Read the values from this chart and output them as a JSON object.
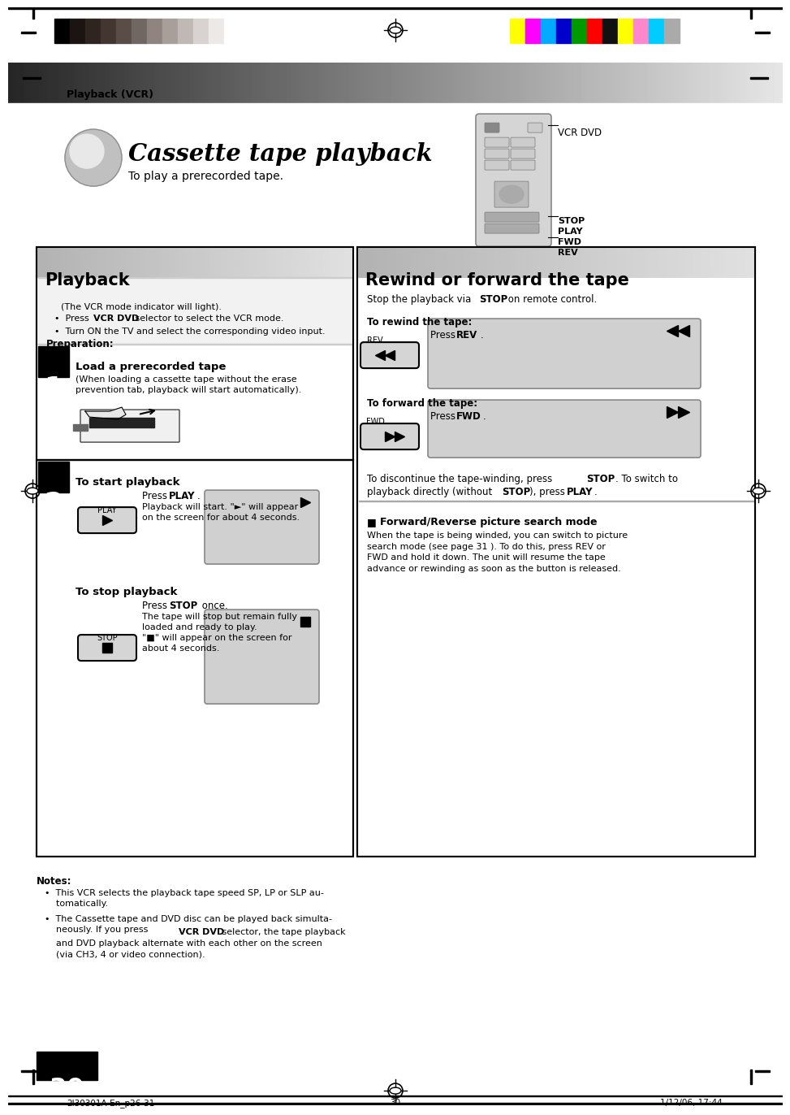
{
  "page_title": "Playback (VCR)",
  "section_title": "Cassette tape playback",
  "section_subtitle": "To play a prerecorded tape.",
  "header_bar_colors_left": [
    "#000000",
    "#1c1412",
    "#2e2420",
    "#433530",
    "#5a4d48",
    "#716762",
    "#8f8480",
    "#a89e9a",
    "#bfb8b4",
    "#d8d3d0",
    "#ece9e7",
    "#ffffff"
  ],
  "header_bar_colors_right": [
    "#ffff00",
    "#ff00ff",
    "#00aaff",
    "#0000cc",
    "#009900",
    "#ff0000",
    "#111111",
    "#ffff00",
    "#ff88cc",
    "#00ccff",
    "#aaaaaa"
  ],
  "playback_box_title": "Playback",
  "rewind_box_title": "Rewind or forward the tape",
  "prep_title": "Preparation:",
  "step1_title": "Load a prerecorded tape",
  "step1_text": "(When loading a cassette tape without the erase\nprevention tab, playback will start automatically).",
  "step2_title": "To start playback",
  "step2_press": "Press ",
  "step2_press_bold": "PLAY",
  "step2_text2": "Playback will start. \"►\" will appear\non the screen for about 4 seconds.",
  "stop_title": "To stop playback",
  "stop_press": "Press ",
  "stop_press_bold": "STOP",
  "stop_text": " once.\nThe tape will stop but remain fully\nloaded and ready to play.\n\"■\" will appear on the screen for\nabout 4 seconds.",
  "rewind_stop_text1": "Stop the playback via ",
  "rewind_stop_bold": "STOP",
  "rewind_stop_text2": " on remote control.",
  "rewind_title": "To rewind the tape:",
  "forward_title": "To forward the tape:",
  "discontinue_text": "To discontinue the tape-winding, press STOP. To switch to\nplayback directly (without STOP), press PLAY.",
  "fwd_reverse_title": "Forward/Reverse picture search mode",
  "fwd_reverse_text": "When the tape is being winded, you can switch to picture\nsearch mode (see page 31 ). To do this, press REV or\nFWD and hold it down. The unit will resume the tape\nadvance or rewinding as soon as the button is released.",
  "notes_title": "Notes:",
  "notes_bullets": [
    "This VCR selects the playback tape speed SP, LP or SLP au-\ntomatically.",
    "The Cassette tape and DVD disc can be played back simulta-\nneously. If you press VCR DVD selector, the tape playback\nand DVD playback alternate with each other on the screen\n(via CH3, 4 or video connection)."
  ],
  "page_number": "30",
  "footer_left": "2I30301A-En_p26-31",
  "footer_center": "30",
  "footer_right": "1/12/06, 17:44",
  "bg_color": "#ffffff"
}
